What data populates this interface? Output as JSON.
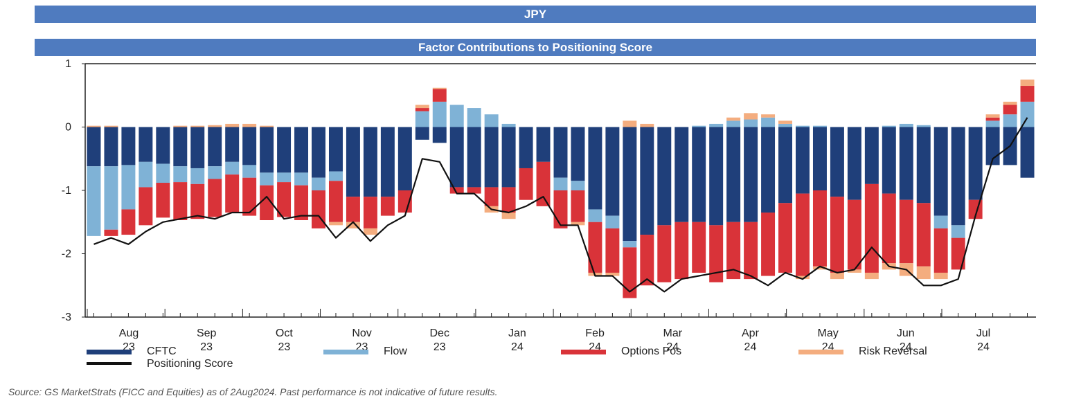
{
  "header": {
    "currency": "JPY",
    "subtitle": "Factor Contributions to Positioning Score"
  },
  "source_note": "Source: GS MarketStrats (FICC and Equities) as of  2Aug2024. Past performance is not indicative of future results.",
  "colors": {
    "banner": "#4f7bbf",
    "CFTC": "#1f3f7a",
    "Flow": "#7fb2d6",
    "Options Pos": "#d93339",
    "Risk Reversal": "#f4ad7f",
    "Positioning Score": "#111111"
  },
  "chart_data": {
    "type": "bar",
    "stacked": true,
    "title": "Factor Contributions to Positioning Score",
    "ylim": [
      -3,
      1
    ],
    "yticks": [
      1,
      0,
      -1,
      -2,
      -3
    ],
    "xtick_labels": [
      {
        "month": "Aug",
        "year": "23"
      },
      {
        "month": "Sep",
        "year": "23"
      },
      {
        "month": "Oct",
        "year": "23"
      },
      {
        "month": "Nov",
        "year": "23"
      },
      {
        "month": "Dec",
        "year": "23"
      },
      {
        "month": "Jan",
        "year": "24"
      },
      {
        "month": "Feb",
        "year": "24"
      },
      {
        "month": "Mar",
        "year": "24"
      },
      {
        "month": "Apr",
        "year": "24"
      },
      {
        "month": "May",
        "year": "24"
      },
      {
        "month": "Jun",
        "year": "24"
      },
      {
        "month": "Jul",
        "year": "24"
      }
    ],
    "x": [
      "2023-07-20",
      "2023-07-27",
      "2023-08-03",
      "2023-08-10",
      "2023-08-17",
      "2023-08-24",
      "2023-08-31",
      "2023-09-07",
      "2023-09-14",
      "2023-09-21",
      "2023-09-28",
      "2023-10-05",
      "2023-10-12",
      "2023-10-19",
      "2023-10-26",
      "2023-11-02",
      "2023-11-09",
      "2023-11-16",
      "2023-11-23",
      "2023-11-30",
      "2023-12-07",
      "2023-12-14",
      "2023-12-21",
      "2023-12-28",
      "2024-01-04",
      "2024-01-11",
      "2024-01-18",
      "2024-01-25",
      "2024-02-01",
      "2024-02-08",
      "2024-02-15",
      "2024-02-22",
      "2024-02-29",
      "2024-03-07",
      "2024-03-14",
      "2024-03-21",
      "2024-03-28",
      "2024-04-04",
      "2024-04-11",
      "2024-04-18",
      "2024-04-25",
      "2024-05-02",
      "2024-05-09",
      "2024-05-16",
      "2024-05-23",
      "2024-05-30",
      "2024-06-06",
      "2024-06-13",
      "2024-06-20",
      "2024-06-27",
      "2024-07-04",
      "2024-07-11",
      "2024-07-18",
      "2024-07-25",
      "2024-08-01"
    ],
    "series": [
      {
        "name": "CFTC",
        "values": [
          -0.62,
          -0.62,
          -0.6,
          -0.55,
          -0.58,
          -0.62,
          -0.65,
          -0.62,
          -0.55,
          -0.6,
          -0.72,
          -0.72,
          -0.72,
          -0.8,
          -0.7,
          -1.1,
          -1.1,
          -1.1,
          -1.0,
          -0.2,
          -0.25,
          -0.95,
          -0.95,
          -0.95,
          -0.95,
          -0.65,
          -0.55,
          -0.8,
          -0.85,
          -1.3,
          -1.4,
          -1.8,
          -1.7,
          -1.55,
          -1.5,
          -1.5,
          -1.55,
          -1.5,
          -1.5,
          -1.35,
          -1.2,
          -1.05,
          -1.0,
          -1.1,
          -1.15,
          -0.9,
          -1.05,
          -1.15,
          -1.2,
          -1.4,
          -1.55,
          -1.15,
          -0.6,
          -0.6,
          -0.8
        ]
      },
      {
        "name": "Flow",
        "values": [
          -1.1,
          -1.0,
          -0.7,
          -0.4,
          -0.3,
          -0.25,
          -0.25,
          -0.2,
          -0.2,
          -0.2,
          -0.2,
          -0.15,
          -0.2,
          -0.2,
          -0.15,
          0.0,
          0.0,
          0.0,
          0.0,
          0.25,
          0.4,
          0.35,
          0.3,
          0.2,
          0.05,
          0.0,
          0.0,
          -0.2,
          -0.15,
          -0.2,
          -0.2,
          -0.1,
          0.0,
          0.0,
          0.0,
          0.02,
          0.05,
          0.1,
          0.12,
          0.15,
          0.05,
          0.02,
          0.02,
          0.0,
          0.0,
          0.0,
          0.02,
          0.05,
          0.03,
          -0.2,
          -0.2,
          0.0,
          0.1,
          0.2,
          0.4
        ]
      },
      {
        "name": "Options Pos",
        "values": [
          0.0,
          -0.1,
          -0.4,
          -0.6,
          -0.55,
          -0.6,
          -0.55,
          -0.6,
          -0.6,
          -0.6,
          -0.55,
          -0.55,
          -0.55,
          -0.6,
          -0.65,
          -0.4,
          -0.5,
          -0.3,
          -0.35,
          0.05,
          0.2,
          -0.1,
          -0.1,
          -0.3,
          -0.4,
          -0.5,
          -0.7,
          -0.6,
          -0.5,
          -0.8,
          -0.7,
          -0.8,
          -0.8,
          -0.9,
          -0.9,
          -0.8,
          -0.9,
          -0.9,
          -0.9,
          -1.0,
          -1.1,
          -1.3,
          -1.2,
          -1.2,
          -1.1,
          -1.4,
          -1.1,
          -1.0,
          -1.0,
          -0.7,
          -0.5,
          -0.3,
          0.05,
          0.15,
          0.25
        ]
      },
      {
        "name": "Risk Reversal",
        "values": [
          0.02,
          0.02,
          0.0,
          0.0,
          0.0,
          0.02,
          0.02,
          0.03,
          0.05,
          0.05,
          0.02,
          0.0,
          0.0,
          0.0,
          -0.05,
          -0.1,
          -0.1,
          0.0,
          0.0,
          0.05,
          0.02,
          0.0,
          0.0,
          -0.1,
          -0.1,
          0.0,
          0.0,
          0.0,
          -0.05,
          -0.05,
          -0.05,
          0.1,
          0.05,
          0.0,
          0.0,
          0.0,
          0.0,
          0.05,
          0.1,
          0.05,
          0.05,
          -0.05,
          -0.05,
          -0.1,
          -0.05,
          -0.1,
          -0.1,
          -0.2,
          -0.2,
          -0.1,
          0.0,
          0.0,
          0.05,
          0.05,
          0.1
        ]
      },
      {
        "name": "Positioning Score",
        "type": "line",
        "values": [
          -1.85,
          -1.75,
          -1.85,
          -1.65,
          -1.5,
          -1.45,
          -1.4,
          -1.45,
          -1.35,
          -1.35,
          -1.1,
          -1.45,
          -1.4,
          -1.4,
          -1.75,
          -1.5,
          -1.8,
          -1.55,
          -1.4,
          -0.5,
          -0.55,
          -1.05,
          -1.05,
          -1.3,
          -1.35,
          -1.25,
          -1.1,
          -1.55,
          -1.55,
          -2.35,
          -2.35,
          -2.6,
          -2.4,
          -2.6,
          -2.4,
          -2.35,
          -2.3,
          -2.25,
          -2.35,
          -2.5,
          -2.3,
          -2.4,
          -2.2,
          -2.3,
          -2.25,
          -1.9,
          -2.2,
          -2.25,
          -2.5,
          -2.5,
          -2.4,
          -1.4,
          -0.5,
          -0.3,
          0.15
        ]
      }
    ]
  },
  "legend": [
    {
      "label": "CFTC",
      "key": "CFTC"
    },
    {
      "label": "Positioning Score",
      "key": "Positioning Score"
    },
    {
      "label": "Flow",
      "key": "Flow"
    },
    {
      "label": "Options Pos",
      "key": "Options Pos"
    },
    {
      "label": "Risk Reversal",
      "key": "Risk Reversal"
    }
  ]
}
